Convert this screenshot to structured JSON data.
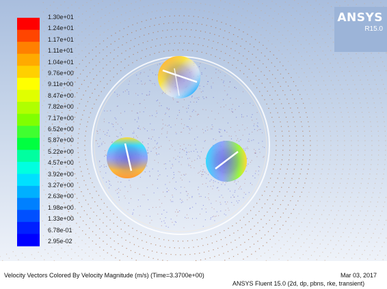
{
  "branding": {
    "name": "ANSYS",
    "version": "R15.0"
  },
  "legend": {
    "title": "",
    "colors": [
      "#ff0000",
      "#ff4500",
      "#ff8000",
      "#ffaa00",
      "#ffd000",
      "#ffff00",
      "#e0ff00",
      "#b0ff00",
      "#80ff00",
      "#40ff30",
      "#00ff40",
      "#00ffa0",
      "#00ffe0",
      "#00e0ff",
      "#00b0ff",
      "#0080ff",
      "#0050ff",
      "#0020ff",
      "#0000ff"
    ],
    "labels": [
      "1.30e+01",
      "1.24e+01",
      "1.17e+01",
      "1.11e+01",
      "1.04e+01",
      "9.76e+00",
      "9.11e+00",
      "8.47e+00",
      "7.82e+00",
      "7.17e+00",
      "6.52e+00",
      "5.87e+00",
      "5.22e+00",
      "4.57e+00",
      "3.92e+00",
      "3.27e+00",
      "2.63e+00",
      "1.98e+00",
      "1.33e+00",
      "6.78e-01",
      "2.95e-02"
    ]
  },
  "footer": {
    "description": "Velocity Vectors Colored By Velocity Magnitude (m/s)  (Time=3.3700e+00)",
    "date": "Mar 03, 2017",
    "solver": "ANSYS Fluent 15.0 (2d, dp, pbns, rke, transient)"
  },
  "colors": {
    "ring": "#ffffff",
    "blade": "#ffffff",
    "far_field": "#c9a070"
  }
}
